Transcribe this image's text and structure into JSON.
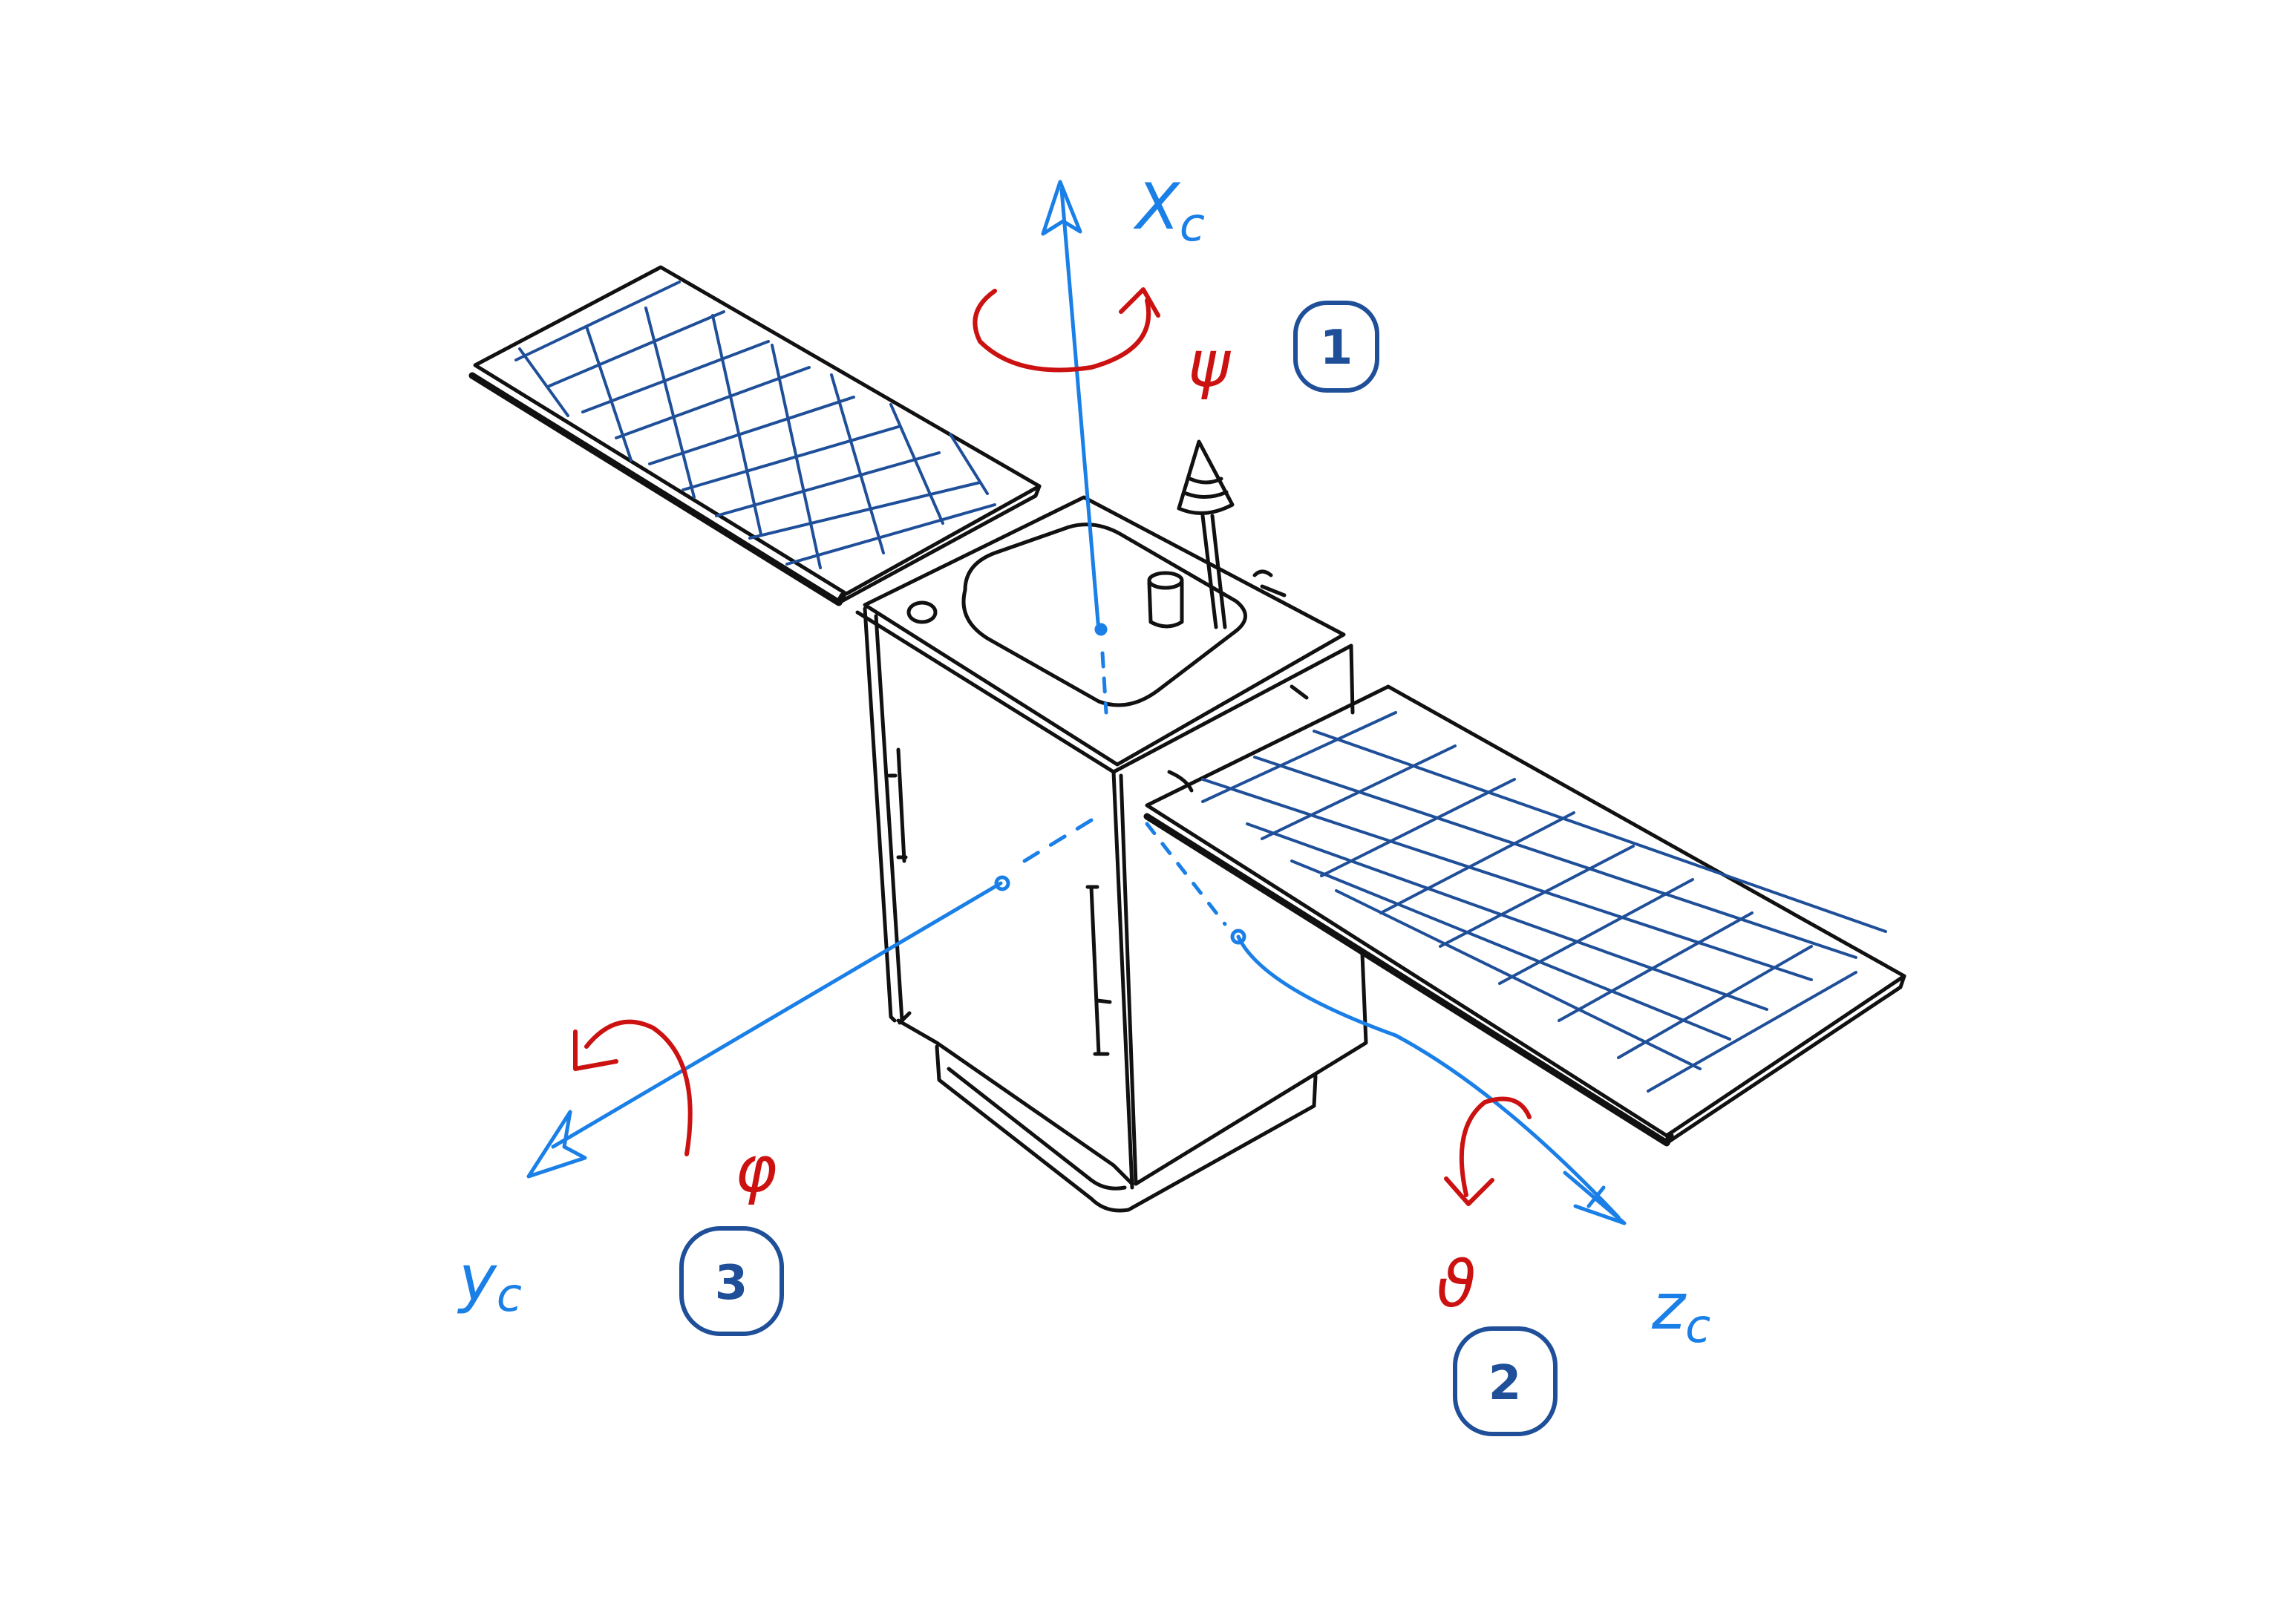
{
  "colors": {
    "background": "#ffffff",
    "outline": "#111111",
    "axis": "#1a7fe6",
    "angle": "#cc1111",
    "grid": "#1f4f99",
    "badge": "#1f4f99"
  },
  "axes": [
    {
      "id": "x",
      "label": "X",
      "sub": "c"
    },
    {
      "id": "y",
      "label": "y",
      "sub": "c"
    },
    {
      "id": "z",
      "label": "z",
      "sub": "c"
    }
  ],
  "rotations": [
    {
      "axis": "x",
      "symbol": "ψ",
      "step": "1"
    },
    {
      "axis": "z",
      "symbol": "ϑ",
      "step": "2"
    },
    {
      "axis": "y",
      "symbol": "φ",
      "step": "3"
    }
  ]
}
